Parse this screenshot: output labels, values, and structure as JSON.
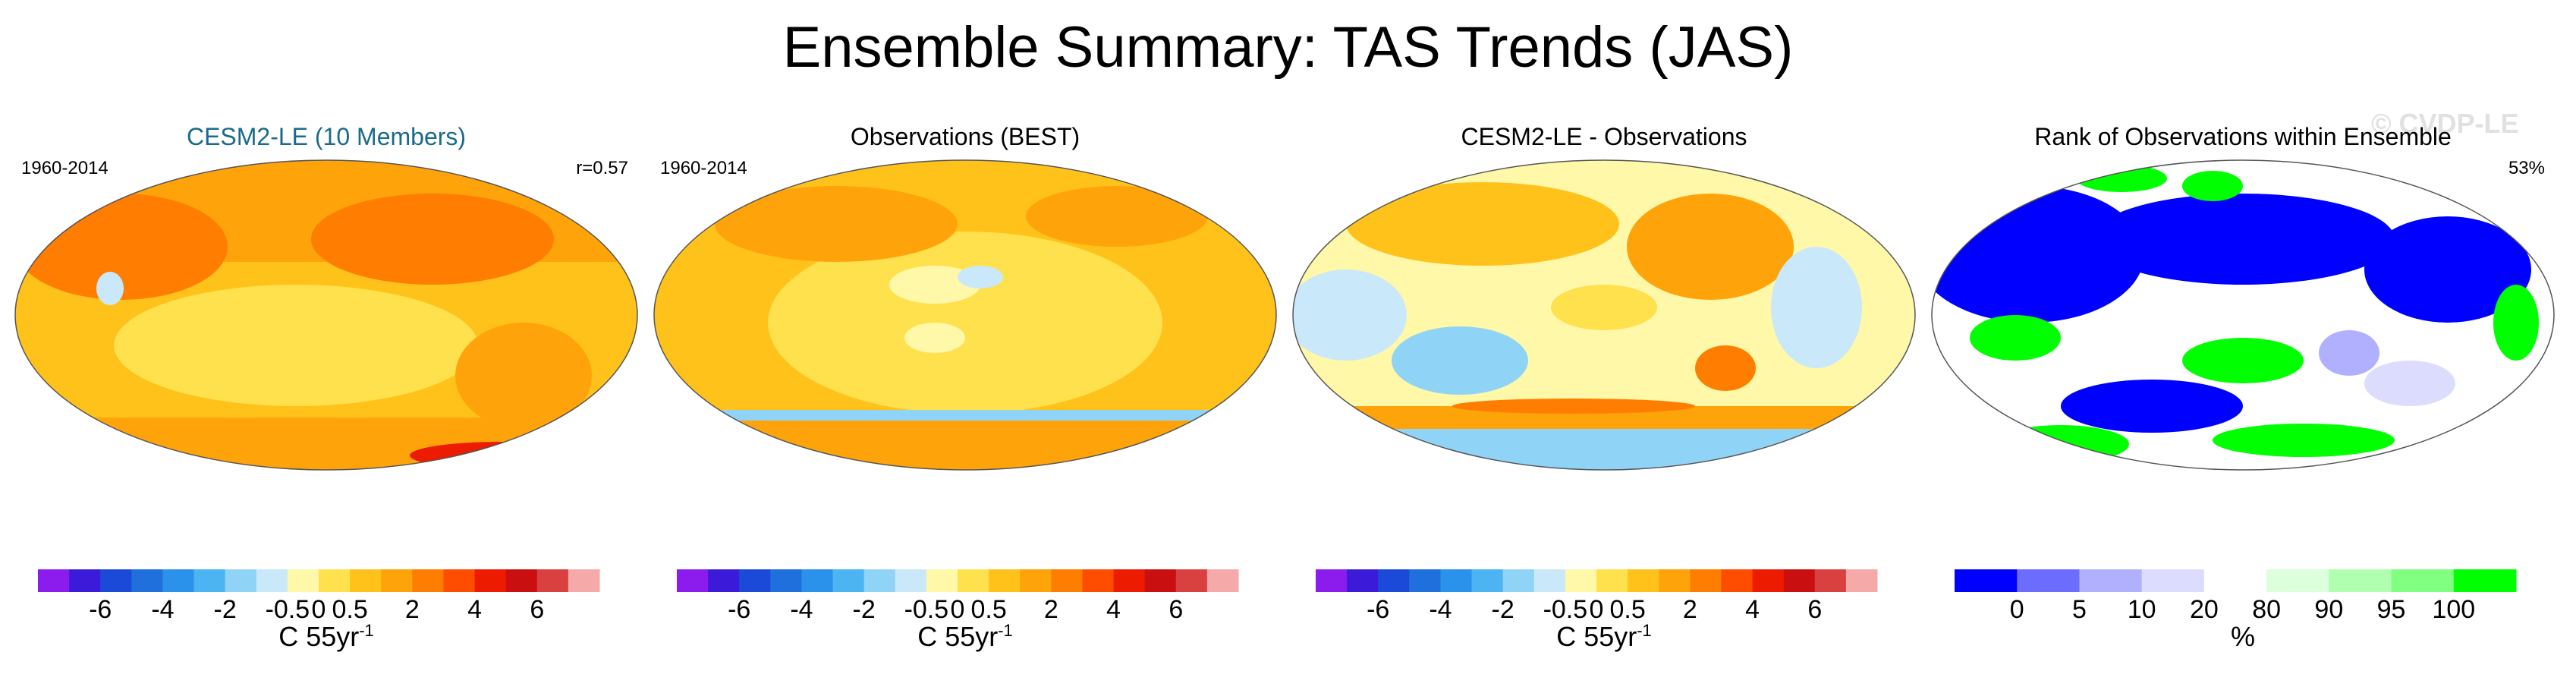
{
  "title": "Ensemble Summary: TAS Trends (JAS)",
  "watermark": "© CVDP-LE",
  "colors": {
    "diverging": [
      "#8c1bed",
      "#3b1bd9",
      "#1b4ad9",
      "#1f6fdc",
      "#2a92ea",
      "#4db4f2",
      "#8fd3f6",
      "#c9e8f9",
      "#fff8a8",
      "#ffe04d",
      "#ffc21a",
      "#ffa30a",
      "#ff7d00",
      "#ff4d00",
      "#ed1c00",
      "#c90f0f",
      "#d94040",
      "#f5a9a9"
    ],
    "rank": [
      "#0000ff",
      "#6c6cff",
      "#b0b0ff",
      "#dcdcff",
      "#ffffff",
      "#dcffdc",
      "#b0ffb0",
      "#80ff80",
      "#00ff00"
    ]
  },
  "panels": [
    {
      "title": "CESM2-LE (10 Members)",
      "left_label": "1960-2014",
      "right_label": "r=0.57"
    },
    {
      "title": "Observations (BEST)",
      "left_label": "1960-2014",
      "right_label": ""
    },
    {
      "title": "CESM2-LE - Observations",
      "left_label": "",
      "right_label": ""
    },
    {
      "title": "Rank of Observations within Ensemble",
      "left_label": "",
      "right_label": "53%"
    }
  ],
  "colorbar_trend": {
    "ticks": [
      "-6",
      "-4",
      "-2",
      "-0.5",
      "0",
      "0.5",
      "2",
      "4",
      "6"
    ],
    "label": "C 55yr",
    "label_sup": "-1"
  },
  "colorbar_rank": {
    "ticks": [
      "0",
      "5",
      "10",
      "20",
      "80",
      "90",
      "95",
      "100"
    ],
    "label": "%"
  },
  "chart_data": [
    {
      "type": "heatmap",
      "title": "CESM2-LE (10 Members)",
      "period": "1960-2014",
      "pattern_correlation": 0.57,
      "units": "C 55yr-1",
      "levels": [
        -6,
        -4,
        -2,
        -0.5,
        0,
        0.5,
        2,
        4,
        6
      ]
    },
    {
      "type": "heatmap",
      "title": "Observations (BEST)",
      "period": "1960-2014",
      "units": "C 55yr-1",
      "levels": [
        -6,
        -4,
        -2,
        -0.5,
        0,
        0.5,
        2,
        4,
        6
      ]
    },
    {
      "type": "heatmap",
      "title": "CESM2-LE - Observations",
      "units": "C 55yr-1",
      "levels": [
        -6,
        -4,
        -2,
        -0.5,
        0,
        0.5,
        2,
        4,
        6
      ]
    },
    {
      "type": "heatmap",
      "title": "Rank of Observations within Ensemble",
      "units": "%",
      "levels": [
        0,
        5,
        10,
        20,
        80,
        90,
        95,
        100
      ],
      "summary_percent": 53
    }
  ]
}
